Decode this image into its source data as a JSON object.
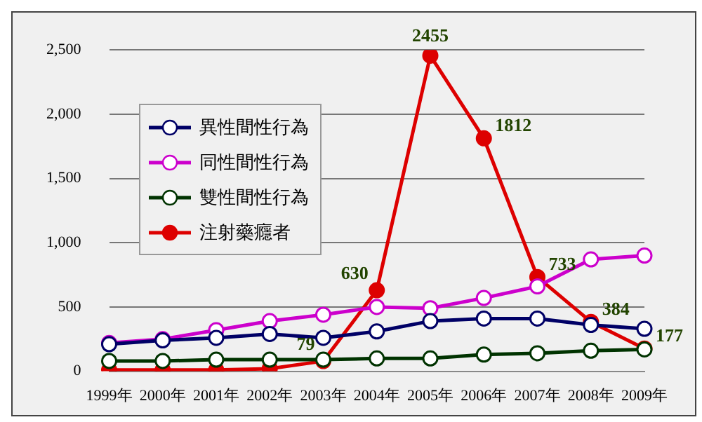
{
  "chart_data": {
    "type": "line",
    "categories": [
      "1999年",
      "2000年",
      "2001年",
      "2002年",
      "2003年",
      "2004年",
      "2005年",
      "2006年",
      "2007年",
      "2008年",
      "2009年"
    ],
    "series": [
      {
        "name": "異性間性行為",
        "color": "#000066",
        "values": [
          210,
          240,
          260,
          290,
          260,
          310,
          390,
          410,
          410,
          360,
          330
        ]
      },
      {
        "name": "同性間性行為",
        "color": "#cc00cc",
        "values": [
          220,
          250,
          320,
          390,
          440,
          500,
          490,
          570,
          660,
          870,
          900
        ]
      },
      {
        "name": "雙性間性行為",
        "color": "#003300",
        "values": [
          80,
          80,
          90,
          90,
          90,
          100,
          100,
          130,
          140,
          160,
          170
        ]
      },
      {
        "name": "注射藥癮者",
        "color": "#dd0000",
        "values": [
          10,
          10,
          10,
          20,
          79,
          630,
          2455,
          1812,
          733,
          384,
          177
        ],
        "value_labels": [
          null,
          null,
          null,
          null,
          "79",
          "630",
          "2455",
          "1812",
          "733",
          "384",
          "177"
        ]
      }
    ],
    "ylim": [
      0,
      2500
    ],
    "yticks": [
      {
        "value": 0,
        "label": "0"
      },
      {
        "value": 500,
        "label": "500"
      },
      {
        "value": 1000,
        "label": "1,000"
      },
      {
        "value": 1500,
        "label": "1,500"
      },
      {
        "value": 2000,
        "label": "2,000"
      },
      {
        "value": 2500,
        "label": "2,500"
      }
    ],
    "grid": "y",
    "legend": "top left",
    "marker": "circle"
  }
}
